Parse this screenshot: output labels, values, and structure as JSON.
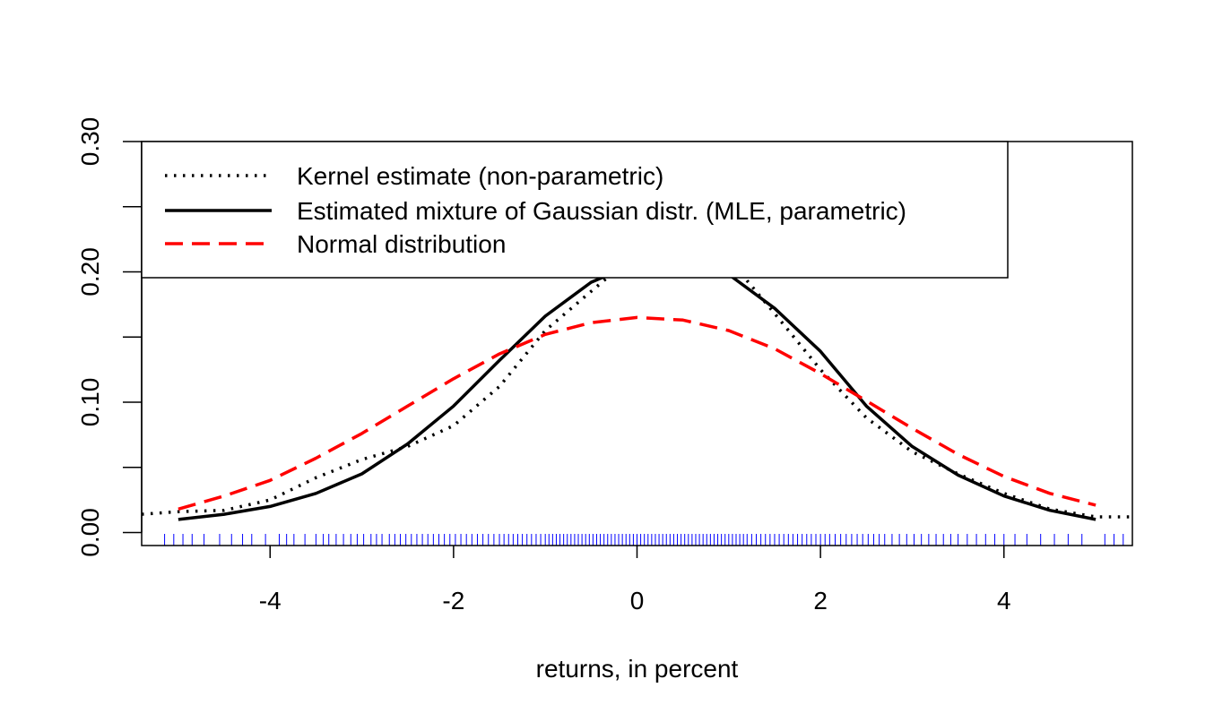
{
  "chart_data": {
    "type": "line",
    "title": "",
    "xlabel": "returns, in percent",
    "ylabel": "",
    "xlim": [
      -5.4,
      5.4
    ],
    "ylim": [
      -0.01,
      0.3
    ],
    "x_ticks": [
      -4,
      -2,
      0,
      2,
      4
    ],
    "x_tick_labels": [
      "-4",
      "-2",
      "0",
      "2",
      "4"
    ],
    "y_ticks": [
      0.0,
      0.05,
      0.1,
      0.15,
      0.2,
      0.25,
      0.3
    ],
    "y_tick_labels": [
      "0.00",
      "",
      "0.10",
      "",
      "0.20",
      "",
      "0.30"
    ],
    "grid": false,
    "legend_position": "top-left",
    "series": [
      {
        "name": "Kernel estimate (non-parametric)",
        "color": "#000000",
        "style": "dotted",
        "x": [
          -5.4,
          -5.0,
          -4.5,
          -4.0,
          -3.5,
          -3.0,
          -2.5,
          -2.0,
          -1.5,
          -1.0,
          -0.5,
          0.0,
          0.5,
          1.0,
          1.5,
          2.0,
          2.5,
          3.0,
          3.5,
          4.0,
          4.5,
          5.0,
          5.4
        ],
        "y": [
          0.014,
          0.016,
          0.017,
          0.025,
          0.042,
          0.056,
          0.066,
          0.082,
          0.112,
          0.155,
          0.185,
          0.215,
          0.24,
          0.21,
          0.168,
          0.125,
          0.088,
          0.062,
          0.045,
          0.03,
          0.018,
          0.012,
          0.012
        ]
      },
      {
        "name": "Estimated mixture of Gaussian distr. (MLE, parametric)",
        "color": "#000000",
        "style": "solid",
        "x": [
          -5.0,
          -4.5,
          -4.0,
          -3.5,
          -3.0,
          -2.5,
          -2.0,
          -1.5,
          -1.0,
          -0.5,
          0.0,
          0.5,
          1.0,
          1.5,
          2.0,
          2.5,
          3.0,
          3.5,
          4.0,
          4.5,
          5.0
        ],
        "y": [
          0.01,
          0.014,
          0.02,
          0.03,
          0.045,
          0.068,
          0.097,
          0.132,
          0.166,
          0.192,
          0.207,
          0.209,
          0.198,
          0.172,
          0.139,
          0.097,
          0.066,
          0.044,
          0.028,
          0.017,
          0.01
        ]
      },
      {
        "name": "Normal distribution",
        "color": "#ff0000",
        "style": "dashed",
        "x": [
          -5.0,
          -4.5,
          -4.0,
          -3.5,
          -3.0,
          -2.5,
          -2.0,
          -1.5,
          -1.0,
          -0.5,
          0.0,
          0.5,
          1.0,
          1.5,
          2.0,
          2.5,
          3.0,
          3.5,
          4.0,
          4.5,
          5.0
        ],
        "y": [
          0.018,
          0.028,
          0.04,
          0.057,
          0.076,
          0.097,
          0.118,
          0.137,
          0.152,
          0.161,
          0.165,
          0.163,
          0.155,
          0.141,
          0.122,
          0.101,
          0.08,
          0.06,
          0.043,
          0.03,
          0.021
        ]
      }
    ],
    "rug": {
      "color": "#0000ff",
      "description_values": "observed returns",
      "x": [
        -5.15,
        -5.05,
        -4.95,
        -4.85,
        -4.72,
        -4.55,
        -4.42,
        -4.3,
        -4.2,
        -4.05,
        -3.9,
        -3.82,
        -3.74,
        -3.62,
        -3.5,
        -3.42,
        -3.36,
        -3.28,
        -3.2,
        -3.12,
        -3.05,
        -2.98,
        -2.9,
        -2.84,
        -2.78,
        -2.7,
        -2.64,
        -2.58,
        -2.52,
        -2.46,
        -2.4,
        -2.34,
        -2.28,
        -2.22,
        -2.16,
        -2.1,
        -2.04,
        -1.98,
        -1.92,
        -1.86,
        -1.8,
        -1.74,
        -1.68,
        -1.62,
        -1.56,
        -1.5,
        -1.45,
        -1.4,
        -1.35,
        -1.3,
        -1.25,
        -1.2,
        -1.15,
        -1.1,
        -1.05,
        -1.0,
        -0.96,
        -0.92,
        -0.88,
        -0.84,
        -0.8,
        -0.76,
        -0.72,
        -0.68,
        -0.64,
        -0.6,
        -0.56,
        -0.52,
        -0.48,
        -0.44,
        -0.4,
        -0.36,
        -0.32,
        -0.28,
        -0.24,
        -0.2,
        -0.16,
        -0.12,
        -0.08,
        -0.04,
        0.0,
        0.04,
        0.08,
        0.12,
        0.16,
        0.2,
        0.24,
        0.28,
        0.32,
        0.36,
        0.4,
        0.44,
        0.48,
        0.52,
        0.56,
        0.6,
        0.64,
        0.68,
        0.72,
        0.76,
        0.8,
        0.84,
        0.88,
        0.92,
        0.96,
        1.0,
        1.04,
        1.08,
        1.12,
        1.16,
        1.2,
        1.25,
        1.3,
        1.35,
        1.4,
        1.45,
        1.5,
        1.55,
        1.6,
        1.65,
        1.7,
        1.75,
        1.8,
        1.85,
        1.9,
        1.95,
        2.0,
        2.05,
        2.1,
        2.16,
        2.22,
        2.28,
        2.34,
        2.4,
        2.46,
        2.52,
        2.58,
        2.64,
        2.7,
        2.78,
        2.86,
        2.94,
        3.02,
        3.1,
        3.18,
        3.26,
        3.34,
        3.42,
        3.5,
        3.6,
        3.7,
        3.8,
        3.9,
        4.0,
        4.12,
        4.25,
        4.4,
        4.55,
        4.7,
        4.85,
        5.1,
        5.2,
        5.3
      ]
    }
  }
}
